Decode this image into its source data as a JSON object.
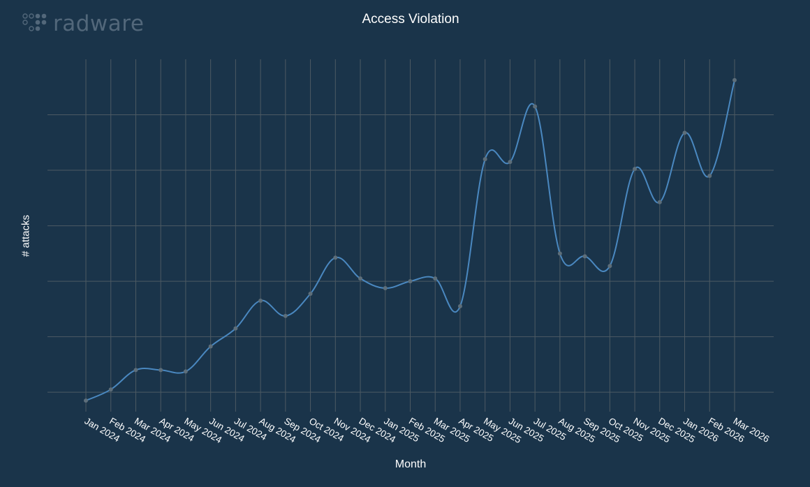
{
  "logo": {
    "text": "radware"
  },
  "chart_data": {
    "type": "line",
    "title": "Access Violation",
    "xlabel": "Month",
    "ylabel": "# attacks",
    "grid": true,
    "y_tick_labels_shown": false,
    "colors": {
      "background": "#1a344a",
      "line": "#4a88c0",
      "grid": "#4d5a63",
      "marker": "#5d6e7a"
    },
    "categories": [
      "Jan 2024",
      "Feb 2024",
      "Mar 2024",
      "Apr 2024",
      "May 2024",
      "Jun 2024",
      "Jul 2024",
      "Aug 2024",
      "Sep 2024",
      "Oct 2024",
      "Nov 2024",
      "Dec 2024",
      "Jan 2025",
      "Feb 2025",
      "Mar 2025",
      "Apr 2025",
      "May 2025",
      "Jun 2025",
      "Jul 2025",
      "Aug 2025",
      "Sep 2025",
      "Oct 2025",
      "Nov 2025",
      "Dec 2025",
      "Jan 2026",
      "Feb 2026",
      "Mar 2026"
    ],
    "series": [
      {
        "values": [
          0.2,
          0.6,
          1.3,
          1.3,
          1.25,
          2.15,
          2.8,
          3.8,
          3.25,
          4.05,
          5.35,
          4.6,
          4.25,
          4.5,
          4.6,
          3.6,
          8.9,
          8.8,
          10.8,
          5.5,
          5.4,
          5.05,
          8.55,
          7.35,
          9.85,
          8.3,
          11.75
        ]
      }
    ],
    "ylim": [
      -0.2,
      12.5
    ]
  }
}
